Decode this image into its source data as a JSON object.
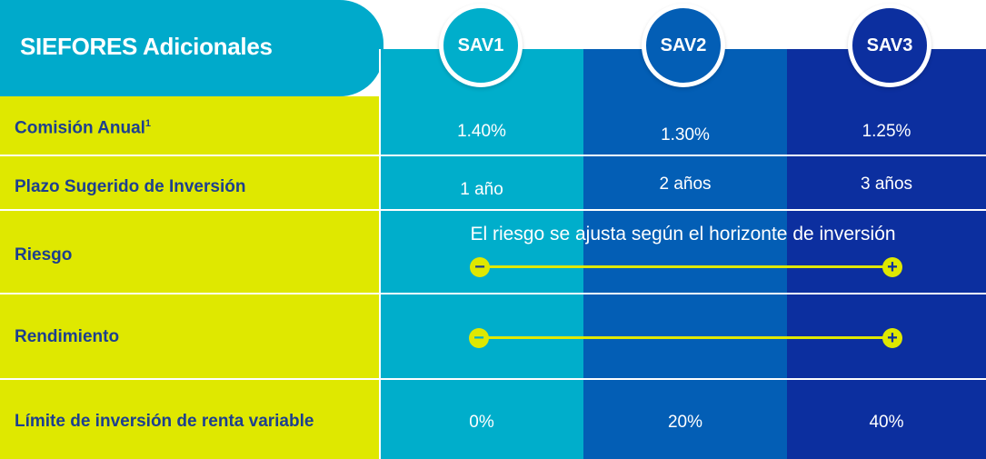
{
  "title": "SIEFORES Adicionales",
  "columns": [
    {
      "label": "SAV1"
    },
    {
      "label": "SAV2"
    },
    {
      "label": "SAV3"
    }
  ],
  "rows": {
    "comision": {
      "label": "Comisión Anual",
      "footnote": "1",
      "values": [
        "1.40%",
        "1.30%",
        "1.25%"
      ]
    },
    "plazo": {
      "label": "Plazo Sugerido de Inversión",
      "values": [
        "1 año",
        "2 años",
        "3 años"
      ]
    },
    "riesgo": {
      "label": "Riesgo",
      "note": "El riesgo se ajusta según el horizonte de inversión",
      "min_symbol": "−",
      "max_symbol": "+"
    },
    "rendimiento": {
      "label": "Rendimiento",
      "min_symbol": "−",
      "max_symbol": "+"
    },
    "limite": {
      "label": "Límite de inversión de renta variable",
      "values": [
        "0%",
        "20%",
        "40%"
      ]
    }
  },
  "colors": {
    "label_column": "#dfe800",
    "label_text": "#1d3f8f",
    "title_tab": "#00aacb",
    "sav1": "#00aecb",
    "sav2": "#035eb5",
    "sav3": "#0c2f9f",
    "scale_accent": "#dfe800"
  }
}
